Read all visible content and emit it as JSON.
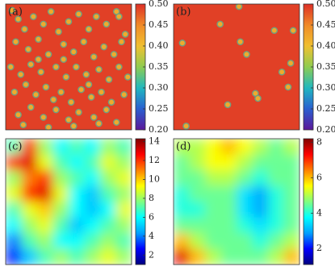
{
  "chart_data": [
    {
      "type": "spots",
      "title": "(a)",
      "xlim": [
        0,
        1
      ],
      "ylim": [
        0,
        1
      ],
      "clim": [
        0.2,
        0.5
      ],
      "cticks": [
        {
          "value": 0.2,
          "label": "0.20"
        },
        {
          "value": 0.25,
          "label": "0.25"
        },
        {
          "value": 0.3,
          "label": "0.30"
        },
        {
          "value": 0.35,
          "label": "0.35"
        },
        {
          "value": 0.4,
          "label": "0.40"
        },
        {
          "value": 0.45,
          "label": "0.45"
        },
        {
          "value": 0.5,
          "label": "0.50"
        }
      ],
      "colors": [
        "#5b1799",
        "#2a5fd0",
        "#1fb8c0",
        "#8fcc50",
        "#f0c030",
        "#f08a28",
        "#dd2e26"
      ],
      "background_value": 0.49,
      "spot_value": 0.42,
      "points": {
        "x": [
          0.05,
          0.1,
          0.15,
          0.22,
          0.3,
          0.36,
          0.42,
          0.5,
          0.58,
          0.66,
          0.72,
          0.8,
          0.88,
          0.95,
          0.08,
          0.18,
          0.26,
          0.34,
          0.46,
          0.54,
          0.62,
          0.7,
          0.78,
          0.86,
          0.92,
          0.04,
          0.12,
          0.2,
          0.28,
          0.4,
          0.48,
          0.56,
          0.64,
          0.74,
          0.82,
          0.9,
          0.97,
          0.07,
          0.16,
          0.24,
          0.32,
          0.38,
          0.44,
          0.52,
          0.6,
          0.68,
          0.76,
          0.84,
          0.94,
          0.1,
          0.2,
          0.3,
          0.4,
          0.5,
          0.58,
          0.7,
          0.8,
          0.88,
          0.14,
          0.34,
          0.54,
          0.74,
          0.9,
          0.26,
          0.46,
          0.66
        ],
        "y": [
          0.95,
          0.88,
          0.8,
          0.9,
          0.84,
          0.94,
          0.78,
          0.86,
          0.92,
          0.8,
          0.9,
          0.84,
          0.94,
          0.76,
          0.7,
          0.64,
          0.72,
          0.6,
          0.68,
          0.62,
          0.7,
          0.58,
          0.66,
          0.6,
          0.7,
          0.5,
          0.44,
          0.52,
          0.46,
          0.5,
          0.42,
          0.5,
          0.44,
          0.48,
          0.4,
          0.5,
          0.42,
          0.3,
          0.36,
          0.28,
          0.34,
          0.24,
          0.3,
          0.22,
          0.32,
          0.26,
          0.3,
          0.22,
          0.28,
          0.12,
          0.18,
          0.1,
          0.16,
          0.08,
          0.14,
          0.1,
          0.16,
          0.06,
          0.04,
          0.02,
          0.03,
          0.05,
          0.9,
          0.56,
          0.56,
          0.36
        ]
      }
    },
    {
      "type": "spots",
      "title": "(b)",
      "xlim": [
        0,
        1
      ],
      "ylim": [
        0,
        1
      ],
      "clim": [
        0.2,
        0.5
      ],
      "cticks": [
        {
          "value": 0.2,
          "label": "0.20"
        },
        {
          "value": 0.25,
          "label": "0.25"
        },
        {
          "value": 0.3,
          "label": "0.30"
        },
        {
          "value": 0.35,
          "label": "0.35"
        },
        {
          "value": 0.4,
          "label": "0.40"
        },
        {
          "value": 0.45,
          "label": "0.45"
        },
        {
          "value": 0.5,
          "label": "0.50"
        }
      ],
      "colors": [
        "#5b1799",
        "#2a5fd0",
        "#1fb8c0",
        "#8fcc50",
        "#f0c030",
        "#f08a28",
        "#dd2e26"
      ],
      "background_value": 0.49,
      "spot_value": 0.42,
      "points": {
        "x": [
          0.52,
          0.37,
          0.8,
          0.07,
          0.53,
          0.58,
          0.95,
          0.93,
          0.86,
          0.91,
          0.65,
          0.67,
          0.43,
          0.1
        ],
        "y": [
          0.98,
          0.84,
          0.79,
          0.69,
          0.7,
          0.6,
          0.79,
          0.53,
          0.46,
          0.34,
          0.29,
          0.25,
          0.2,
          0.03
        ]
      }
    },
    {
      "type": "heatmap",
      "title": "(c)",
      "clim": [
        1,
        14.3
      ],
      "cticks": [
        2,
        4,
        6,
        8,
        10,
        12,
        14
      ],
      "colors": [
        "#00007f",
        "#0000ff",
        "#00a0ff",
        "#00ffff",
        "#80ff80",
        "#ffff00",
        "#ff8000",
        "#ff0000",
        "#7f0000"
      ],
      "values": [
        [
          7,
          12,
          8,
          6,
          7,
          6,
          8,
          7
        ],
        [
          12,
          13,
          9,
          7,
          6,
          7,
          9,
          8
        ],
        [
          8,
          11,
          12,
          8,
          7,
          6,
          8,
          9
        ],
        [
          9,
          12,
          13,
          9,
          6,
          5,
          7,
          8
        ],
        [
          7,
          9,
          10,
          8,
          6,
          5,
          6,
          9
        ],
        [
          6,
          8,
          9,
          7,
          5,
          6,
          7,
          8
        ],
        [
          4,
          7,
          8,
          6,
          6,
          7,
          8,
          7
        ],
        [
          3,
          5,
          7,
          8,
          7,
          8,
          9,
          8
        ]
      ]
    },
    {
      "type": "heatmap",
      "title": "(d)",
      "clim": [
        1.1,
        8.2
      ],
      "cticks": [
        2,
        4,
        6,
        8
      ],
      "colors": [
        "#00007f",
        "#0000ff",
        "#00a0ff",
        "#00ffff",
        "#80ff80",
        "#ffff00",
        "#ff8000",
        "#ff0000",
        "#7f0000"
      ],
      "values": [
        [
          5,
          5,
          5.5,
          6,
          5.5,
          5,
          4.5,
          5
        ],
        [
          4.5,
          5,
          5.5,
          5.5,
          5,
          4.5,
          4.5,
          4.5
        ],
        [
          4.5,
          4.5,
          5,
          5,
          4.5,
          4,
          4.5,
          4.5
        ],
        [
          4,
          4.5,
          4.5,
          4.5,
          3.5,
          3,
          4,
          4.5
        ],
        [
          4,
          4,
          4.5,
          4.5,
          3.5,
          3,
          4,
          4.5
        ],
        [
          4.5,
          4.5,
          4.5,
          4.5,
          4,
          3.5,
          4,
          4.5
        ],
        [
          6,
          5,
          4.5,
          4.5,
          4.5,
          4,
          4.5,
          5
        ],
        [
          7.5,
          6,
          5,
          4.5,
          4.5,
          4.5,
          5,
          6
        ]
      ]
    }
  ]
}
